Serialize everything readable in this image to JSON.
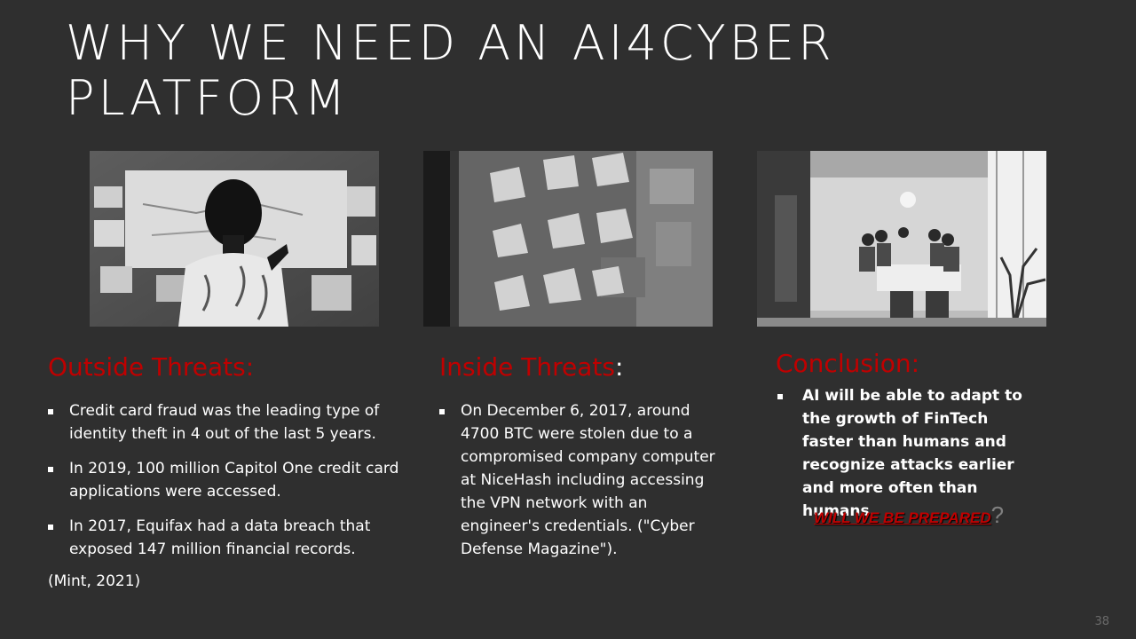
{
  "slide": {
    "title": "WHY WE NEED AN AI4CYBER PLATFORM",
    "page_number": "38"
  },
  "outside": {
    "heading": "Outside Threats:",
    "items": [
      "Credit card fraud was the leading type of identity theft in 4 out of the last 5 years.",
      "In 2019, 100 million Capitol One credit card applications were accessed.",
      "In 2017, Equifax had a data breach that exposed 147 million financial records."
    ],
    "source": "(Mint, 2021)"
  },
  "inside": {
    "heading": "Inside Threats",
    "colon": ":",
    "items": [
      "On December 6, 2017, around 4700 BTC were stolen due to a compromised company computer at NiceHash including accessing the VPN network with an engineer's credentials. (\"Cyber Defense Magazine\")."
    ]
  },
  "conclusion": {
    "heading": "Conclusion:",
    "items": [
      "AI will be able to adapt to the growth of FinTech faster than humans and recognize attacks earlier and more often than humans."
    ],
    "callout": "WILL WE BE PREPARED",
    "callout_mark": "?"
  },
  "colors": {
    "background": "#2f2f2f",
    "heading_red": "#c00000",
    "text": "#ffffff"
  }
}
